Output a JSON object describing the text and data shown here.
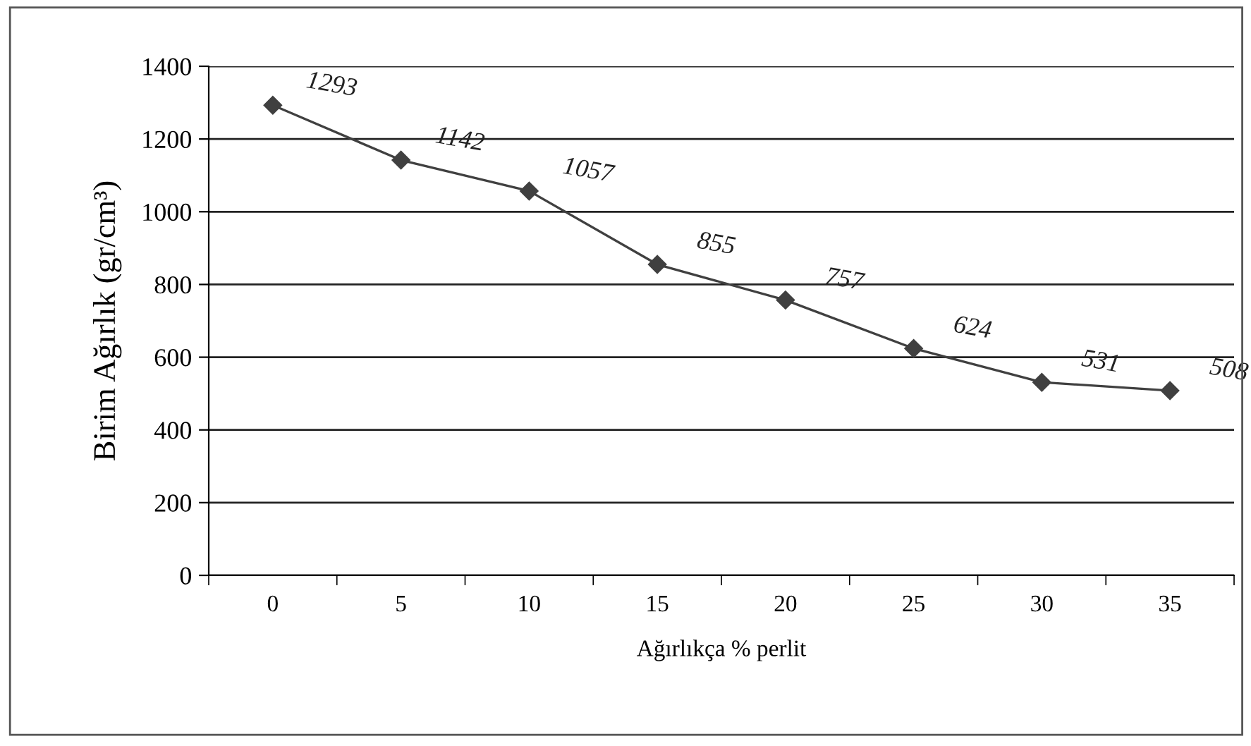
{
  "chart_data": {
    "type": "line",
    "xlabel": "Ağırlıkça % perlit",
    "ylabel": "Birim Ağırlık (gr/cm³)",
    "categories": [
      "0",
      "5",
      "10",
      "15",
      "20",
      "25",
      "30",
      "35"
    ],
    "series": [
      {
        "color": "#404040",
        "values": [
          1293,
          1142,
          1057,
          855,
          757,
          624,
          531,
          508
        ]
      }
    ],
    "ylim": [
      0,
      1400
    ],
    "yticks": [
      0,
      200,
      400,
      600,
      800,
      1000,
      1200,
      1400
    ],
    "grid": "y",
    "marker": "diamond",
    "line_style": "solid",
    "data_labels": true,
    "legend": false
  }
}
